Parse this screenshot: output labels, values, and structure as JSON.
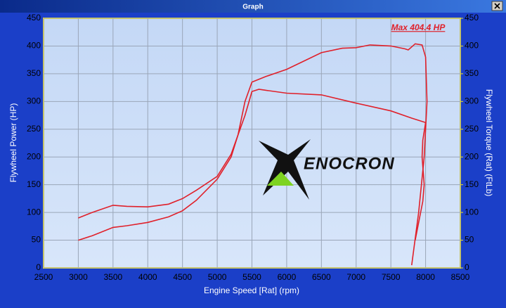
{
  "window_title": "Graph",
  "chart_data": {
    "type": "line",
    "annotation": "Max 404.4 HP",
    "logo": "ENOCRON",
    "xlabel": "Engine Speed [Rat] (rpm)",
    "ylabel": "Flywheel Power (HP)",
    "y2label": "Flywheel Torque (Rat) (FtLb)",
    "xlim": [
      2500,
      8500
    ],
    "xticks": [
      2500,
      3000,
      3500,
      4000,
      4500,
      5000,
      5500,
      6000,
      6500,
      7000,
      7500,
      8000,
      8500
    ],
    "ylim": [
      0,
      450
    ],
    "yticks": [
      0,
      50,
      100,
      150,
      200,
      250,
      300,
      350,
      400,
      450
    ],
    "y2lim": [
      0,
      450
    ],
    "y2ticks": [
      0,
      50,
      100,
      150,
      200,
      250,
      300,
      350,
      400,
      450
    ],
    "grid": true,
    "series": [
      {
        "color": "#e0202a",
        "x": [
          3000,
          3200,
          3500,
          3700,
          4000,
          4300,
          4500,
          4700,
          5000,
          5200,
          5300,
          5400,
          5500,
          5700,
          6000,
          6200,
          6500,
          6800,
          7000,
          7200,
          7500,
          7700,
          7750,
          7850,
          7950,
          8000,
          8020,
          7980,
          7900,
          7800
        ],
        "values": [
          50,
          58,
          73,
          76,
          82,
          92,
          103,
          122,
          160,
          200,
          240,
          300,
          335,
          345,
          358,
          370,
          388,
          396,
          397,
          402,
          400,
          395,
          393,
          404,
          402,
          380,
          300,
          200,
          100,
          5
        ]
      },
      {
        "color": "#e0202a",
        "axis": "y2",
        "x": [
          3000,
          3200,
          3500,
          3700,
          4000,
          4300,
          4500,
          4700,
          5000,
          5200,
          5400,
          5500,
          5600,
          6000,
          6500,
          7000,
          7500,
          7800,
          8000,
          7960,
          7950,
          7980,
          7960,
          7850
        ],
        "values": [
          90,
          100,
          113,
          111,
          110,
          115,
          125,
          140,
          165,
          205,
          275,
          318,
          322,
          315,
          312,
          297,
          283,
          270,
          262,
          230,
          200,
          150,
          120,
          50
        ]
      }
    ]
  }
}
